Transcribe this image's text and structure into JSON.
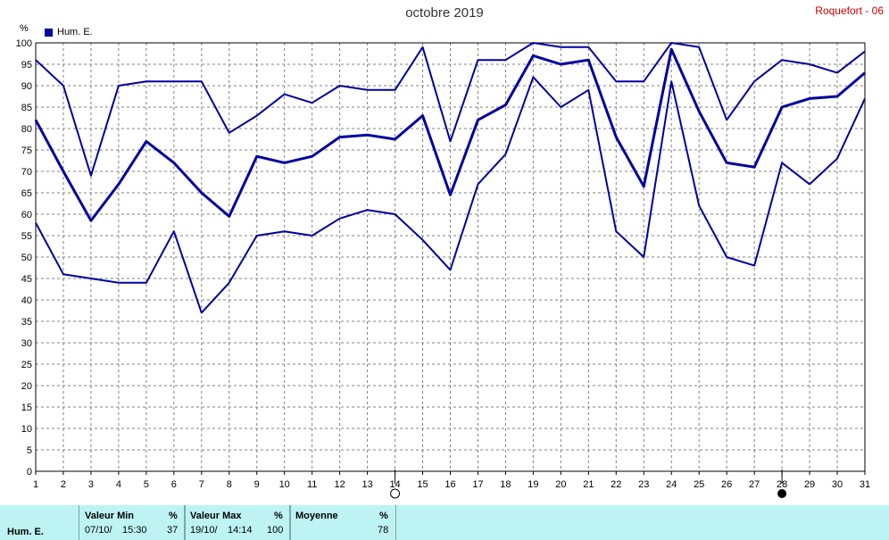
{
  "title": "octobre 2019",
  "station": "Roquefort - 06",
  "unit": "%",
  "legend": "Hum. E.",
  "chart_data": {
    "type": "line",
    "title": "octobre 2019",
    "ylabel": "%",
    "ylim": [
      0,
      100
    ],
    "yticks": [
      0,
      5,
      10,
      15,
      20,
      25,
      30,
      35,
      40,
      45,
      50,
      55,
      60,
      65,
      70,
      75,
      80,
      85,
      90,
      95,
      100
    ],
    "categories": [
      1,
      2,
      3,
      4,
      5,
      6,
      7,
      8,
      9,
      10,
      11,
      12,
      13,
      14,
      15,
      16,
      17,
      18,
      19,
      20,
      21,
      22,
      23,
      24,
      25,
      26,
      27,
      28,
      29,
      30,
      31
    ],
    "grid": true,
    "series": [
      {
        "name": "max",
        "values": [
          96,
          90,
          69,
          90,
          91,
          91,
          91,
          79,
          83,
          88,
          86,
          90,
          89,
          89,
          99,
          77,
          96,
          96,
          100,
          99,
          99,
          91,
          91,
          100,
          99,
          82,
          91,
          96,
          95,
          93,
          98
        ]
      },
      {
        "name": "moyenne",
        "values": [
          82,
          70,
          58.5,
          67,
          77,
          72,
          65,
          59.5,
          73.5,
          72,
          73.5,
          78,
          78.5,
          77.5,
          83,
          64.5,
          82,
          85.5,
          97,
          95,
          96,
          78,
          66.5,
          98.5,
          84,
          72,
          71,
          85,
          87,
          87.5,
          93
        ]
      },
      {
        "name": "min",
        "values": [
          58,
          46,
          45,
          44,
          44,
          56,
          37,
          44,
          55,
          56,
          55,
          59,
          61,
          60,
          54,
          47,
          67,
          74,
          92,
          85,
          89,
          56,
          50,
          91,
          62,
          50,
          48,
          72,
          67,
          73,
          87
        ]
      }
    ],
    "markers": {
      "new_moon_day": 28,
      "full_moon_day": 14
    }
  },
  "footer": {
    "row_label": "Hum. E.",
    "min": {
      "header": "Valeur Min",
      "unit": "%",
      "date": "07/10/",
      "time": "15:30",
      "value": "37"
    },
    "max": {
      "header": "Valeur Max",
      "unit": "%",
      "date": "19/10/",
      "time": "14:14",
      "value": "100"
    },
    "avg": {
      "header": "Moyenne",
      "unit": "%",
      "value": "78"
    }
  },
  "colors": {
    "line": "#0000a0",
    "grid": "#808080",
    "footer_bg": "#bdf3f3",
    "station": "#cc0000"
  }
}
